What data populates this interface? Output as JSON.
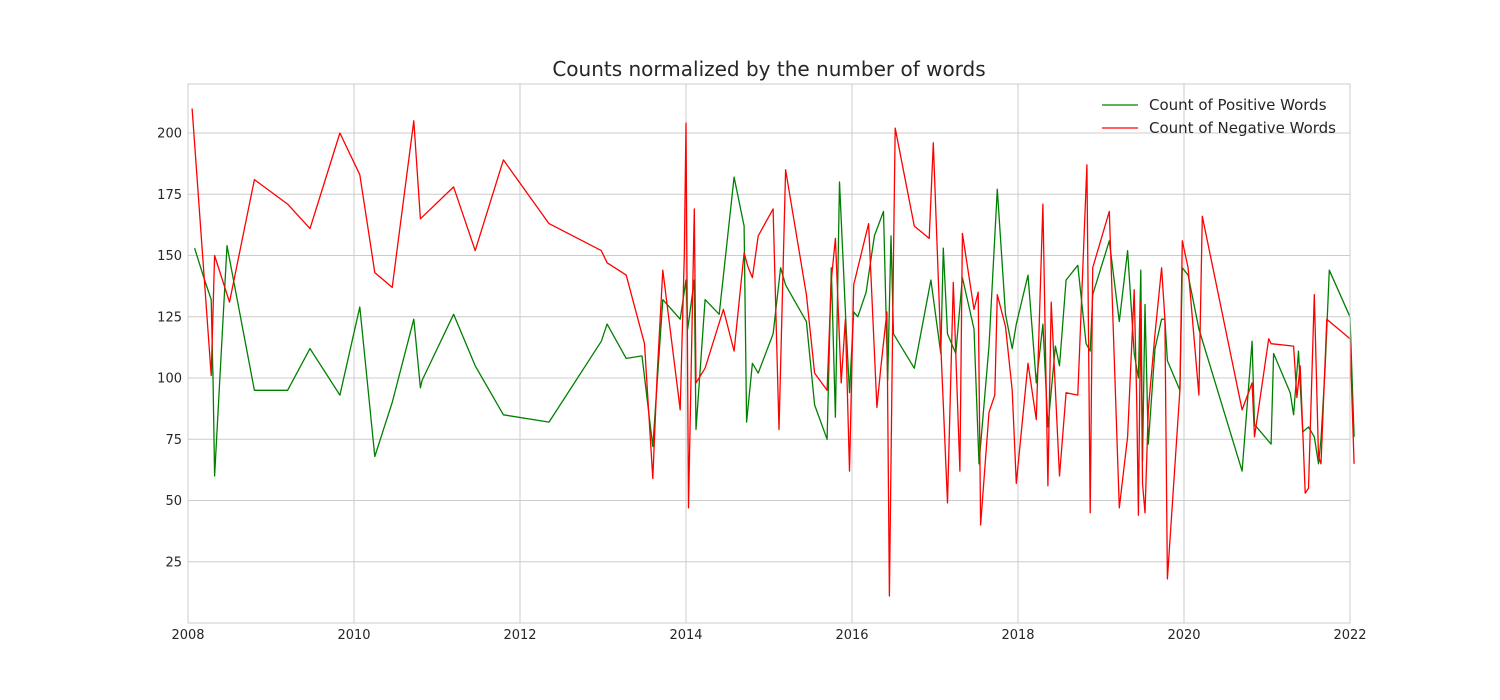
{
  "chart_data": {
    "type": "line",
    "title": "Counts normalized by the number of words",
    "xlabel": "",
    "ylabel": "",
    "x_axis": "decimal year",
    "xlim": [
      2008,
      2022
    ],
    "ylim": [
      0,
      220
    ],
    "xticks": [
      2008,
      2010,
      2012,
      2014,
      2016,
      2018,
      2020,
      2022
    ],
    "yticks": [
      25,
      50,
      75,
      100,
      125,
      150,
      175,
      200
    ],
    "grid": true,
    "legend_position": "top-right",
    "series": [
      {
        "name": "Count of Positive Words",
        "color": "#008000",
        "points": [
          [
            2008.08,
            153
          ],
          [
            2008.2,
            140
          ],
          [
            2008.28,
            132
          ],
          [
            2008.3,
            101
          ],
          [
            2008.3,
            103
          ],
          [
            2008.32,
            60
          ],
          [
            2008.47,
            154
          ],
          [
            2008.8,
            95
          ],
          [
            2009.2,
            95
          ],
          [
            2009.47,
            112
          ],
          [
            2009.83,
            93
          ],
          [
            2010.07,
            129
          ],
          [
            2010.25,
            68
          ],
          [
            2010.46,
            90
          ],
          [
            2010.72,
            124
          ],
          [
            2010.8,
            96
          ],
          [
            2010.82,
            99
          ],
          [
            2011.2,
            126
          ],
          [
            2011.46,
            105
          ],
          [
            2011.8,
            85
          ],
          [
            2012.35,
            82
          ],
          [
            2012.98,
            115
          ],
          [
            2013.05,
            122
          ],
          [
            2013.28,
            108
          ],
          [
            2013.47,
            109
          ],
          [
            2013.6,
            72
          ],
          [
            2013.72,
            132
          ],
          [
            2013.93,
            124
          ],
          [
            2014.0,
            140
          ],
          [
            2014.02,
            120
          ],
          [
            2014.1,
            140
          ],
          [
            2014.12,
            79
          ],
          [
            2014.23,
            132
          ],
          [
            2014.4,
            126
          ],
          [
            2014.58,
            182
          ],
          [
            2014.7,
            162
          ],
          [
            2014.73,
            82
          ],
          [
            2014.8,
            106
          ],
          [
            2014.87,
            102
          ],
          [
            2015.05,
            118
          ],
          [
            2015.14,
            145
          ],
          [
            2015.2,
            138
          ],
          [
            2015.45,
            123
          ],
          [
            2015.55,
            89
          ],
          [
            2015.7,
            75
          ],
          [
            2015.75,
            145
          ],
          [
            2015.8,
            84
          ],
          [
            2015.85,
            180
          ],
          [
            2015.93,
            120
          ],
          [
            2015.97,
            94
          ],
          [
            2016.02,
            127
          ],
          [
            2016.07,
            125
          ],
          [
            2016.17,
            135
          ],
          [
            2016.27,
            158
          ],
          [
            2016.38,
            168
          ],
          [
            2016.43,
            99
          ],
          [
            2016.47,
            158
          ],
          [
            2016.5,
            118
          ],
          [
            2016.75,
            104
          ],
          [
            2016.95,
            140
          ],
          [
            2017.07,
            110
          ],
          [
            2017.1,
            153
          ],
          [
            2017.15,
            118
          ],
          [
            2017.25,
            110
          ],
          [
            2017.33,
            141
          ],
          [
            2017.47,
            120
          ],
          [
            2017.53,
            65
          ],
          [
            2017.65,
            113
          ],
          [
            2017.75,
            177
          ],
          [
            2017.85,
            126
          ],
          [
            2017.93,
            112
          ],
          [
            2017.98,
            122
          ],
          [
            2018.12,
            142
          ],
          [
            2018.22,
            98
          ],
          [
            2018.3,
            122
          ],
          [
            2018.36,
            80
          ],
          [
            2018.45,
            113
          ],
          [
            2018.5,
            105
          ],
          [
            2018.58,
            140
          ],
          [
            2018.72,
            146
          ],
          [
            2018.82,
            114
          ],
          [
            2018.87,
            111
          ],
          [
            2018.9,
            134
          ],
          [
            2019.1,
            156
          ],
          [
            2019.22,
            123
          ],
          [
            2019.32,
            152
          ],
          [
            2019.4,
            110
          ],
          [
            2019.45,
            100
          ],
          [
            2019.48,
            144
          ],
          [
            2019.5,
            66
          ],
          [
            2019.53,
            130
          ],
          [
            2019.57,
            73
          ],
          [
            2019.65,
            112
          ],
          [
            2019.73,
            124
          ],
          [
            2019.77,
            124
          ],
          [
            2019.8,
            107
          ],
          [
            2019.95,
            95
          ],
          [
            2019.98,
            145
          ],
          [
            2020.05,
            142
          ],
          [
            2020.18,
            120
          ],
          [
            2020.7,
            62
          ],
          [
            2020.82,
            115
          ],
          [
            2020.85,
            81
          ],
          [
            2021.05,
            73
          ],
          [
            2021.08,
            110
          ],
          [
            2021.28,
            94
          ],
          [
            2021.32,
            85
          ],
          [
            2021.38,
            111
          ],
          [
            2021.43,
            78
          ],
          [
            2021.5,
            80
          ],
          [
            2021.57,
            76
          ],
          [
            2021.62,
            65
          ],
          [
            2021.65,
            75
          ],
          [
            2021.7,
            104
          ],
          [
            2021.75,
            144
          ],
          [
            2022.0,
            125
          ],
          [
            2022.05,
            76
          ]
        ]
      },
      {
        "name": "Count of Negative Words",
        "color": "#ff0000",
        "points": [
          [
            2008.05,
            210
          ],
          [
            2008.28,
            101
          ],
          [
            2008.32,
            150
          ],
          [
            2008.5,
            131
          ],
          [
            2008.8,
            181
          ],
          [
            2009.2,
            171
          ],
          [
            2009.47,
            161
          ],
          [
            2009.83,
            200
          ],
          [
            2010.07,
            183
          ],
          [
            2010.25,
            143
          ],
          [
            2010.46,
            137
          ],
          [
            2010.72,
            205
          ],
          [
            2010.8,
            165
          ],
          [
            2011.2,
            178
          ],
          [
            2011.46,
            152
          ],
          [
            2011.8,
            189
          ],
          [
            2012.35,
            163
          ],
          [
            2012.98,
            152
          ],
          [
            2013.05,
            147
          ],
          [
            2013.28,
            142
          ],
          [
            2013.5,
            114
          ],
          [
            2013.6,
            59
          ],
          [
            2013.65,
            100
          ],
          [
            2013.72,
            144
          ],
          [
            2013.93,
            87
          ],
          [
            2013.98,
            150
          ],
          [
            2014.0,
            204
          ],
          [
            2014.03,
            47
          ],
          [
            2014.1,
            169
          ],
          [
            2014.12,
            98
          ],
          [
            2014.23,
            104
          ],
          [
            2014.45,
            128
          ],
          [
            2014.58,
            111
          ],
          [
            2014.7,
            151
          ],
          [
            2014.75,
            145
          ],
          [
            2014.8,
            141
          ],
          [
            2014.87,
            158
          ],
          [
            2015.05,
            169
          ],
          [
            2015.12,
            79
          ],
          [
            2015.2,
            185
          ],
          [
            2015.45,
            134
          ],
          [
            2015.55,
            102
          ],
          [
            2015.7,
            95
          ],
          [
            2015.75,
            140
          ],
          [
            2015.8,
            157
          ],
          [
            2015.87,
            98
          ],
          [
            2015.92,
            124
          ],
          [
            2015.97,
            62
          ],
          [
            2016.02,
            138
          ],
          [
            2016.12,
            152
          ],
          [
            2016.2,
            163
          ],
          [
            2016.3,
            88
          ],
          [
            2016.35,
            105
          ],
          [
            2016.42,
            127
          ],
          [
            2016.45,
            11
          ],
          [
            2016.5,
            150
          ],
          [
            2016.52,
            202
          ],
          [
            2016.75,
            162
          ],
          [
            2016.93,
            157
          ],
          [
            2016.98,
            196
          ],
          [
            2017.07,
            113
          ],
          [
            2017.15,
            49
          ],
          [
            2017.22,
            139
          ],
          [
            2017.3,
            62
          ],
          [
            2017.33,
            159
          ],
          [
            2017.47,
            128
          ],
          [
            2017.52,
            135
          ],
          [
            2017.55,
            40
          ],
          [
            2017.65,
            86
          ],
          [
            2017.72,
            93
          ],
          [
            2017.75,
            134
          ],
          [
            2017.85,
            121
          ],
          [
            2017.93,
            95
          ],
          [
            2017.98,
            57
          ],
          [
            2018.12,
            106
          ],
          [
            2018.22,
            83
          ],
          [
            2018.3,
            171
          ],
          [
            2018.36,
            56
          ],
          [
            2018.4,
            131
          ],
          [
            2018.5,
            60
          ],
          [
            2018.58,
            94
          ],
          [
            2018.72,
            93
          ],
          [
            2018.83,
            187
          ],
          [
            2018.87,
            45
          ],
          [
            2018.9,
            145
          ],
          [
            2019.1,
            168
          ],
          [
            2019.22,
            47
          ],
          [
            2019.32,
            76
          ],
          [
            2019.4,
            136
          ],
          [
            2019.43,
            91
          ],
          [
            2019.45,
            44
          ],
          [
            2019.48,
            131
          ],
          [
            2019.5,
            57
          ],
          [
            2019.53,
            45
          ],
          [
            2019.57,
            87
          ],
          [
            2019.65,
            118
          ],
          [
            2019.73,
            145
          ],
          [
            2019.77,
            124
          ],
          [
            2019.8,
            18
          ],
          [
            2019.95,
            95
          ],
          [
            2019.98,
            156
          ],
          [
            2020.05,
            145
          ],
          [
            2020.18,
            93
          ],
          [
            2020.22,
            166
          ],
          [
            2020.7,
            87
          ],
          [
            2020.82,
            98
          ],
          [
            2020.85,
            76
          ],
          [
            2021.02,
            116
          ],
          [
            2021.05,
            114
          ],
          [
            2021.32,
            113
          ],
          [
            2021.36,
            92
          ],
          [
            2021.4,
            105
          ],
          [
            2021.46,
            53
          ],
          [
            2021.5,
            55
          ],
          [
            2021.57,
            134
          ],
          [
            2021.62,
            68
          ],
          [
            2021.65,
            65
          ],
          [
            2021.72,
            124
          ],
          [
            2022.0,
            116
          ],
          [
            2022.05,
            65
          ]
        ]
      }
    ]
  }
}
